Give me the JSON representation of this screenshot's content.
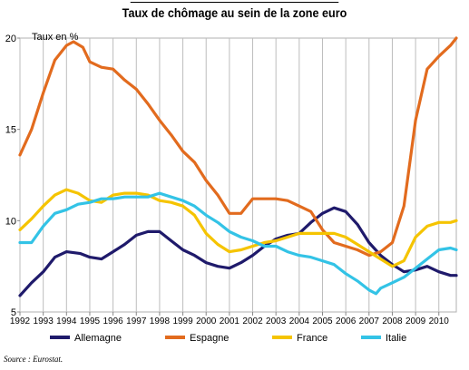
{
  "chart_data": {
    "type": "line",
    "title": "Taux de chômage au sein de la zone euro",
    "ylabel": "Taux en %",
    "xlabel": "",
    "xlim": [
      1992,
      2010.75
    ],
    "ylim": [
      5,
      20
    ],
    "y_ticks": [
      5,
      10,
      15,
      20
    ],
    "x_ticks": [
      1992,
      1993,
      1994,
      1995,
      1996,
      1997,
      1998,
      1999,
      2000,
      2001,
      2002,
      2003,
      2004,
      2005,
      2006,
      2007,
      2008,
      2009,
      2010
    ],
    "grid": "vertical",
    "legend_position": "bottom",
    "source": "Source : Eurostat.",
    "series": [
      {
        "name": "Allemagne",
        "color": "#1f1a6b",
        "points": [
          [
            1992,
            5.9
          ],
          [
            1992.5,
            6.6
          ],
          [
            1993,
            7.2
          ],
          [
            1993.5,
            8.0
          ],
          [
            1994,
            8.3
          ],
          [
            1994.6,
            8.2
          ],
          [
            1995,
            8.0
          ],
          [
            1995.5,
            7.9
          ],
          [
            1996,
            8.3
          ],
          [
            1996.5,
            8.7
          ],
          [
            1997,
            9.2
          ],
          [
            1997.5,
            9.4
          ],
          [
            1998,
            9.4
          ],
          [
            1998.5,
            8.9
          ],
          [
            1999,
            8.4
          ],
          [
            1999.5,
            8.1
          ],
          [
            2000,
            7.7
          ],
          [
            2000.5,
            7.5
          ],
          [
            2001,
            7.4
          ],
          [
            2001.5,
            7.7
          ],
          [
            2002,
            8.1
          ],
          [
            2002.5,
            8.6
          ],
          [
            2003,
            9.0
          ],
          [
            2003.5,
            9.2
          ],
          [
            2004,
            9.3
          ],
          [
            2004.5,
            9.9
          ],
          [
            2005,
            10.4
          ],
          [
            2005.5,
            10.7
          ],
          [
            2006,
            10.5
          ],
          [
            2006.5,
            9.8
          ],
          [
            2007,
            8.8
          ],
          [
            2007.5,
            8.1
          ],
          [
            2008,
            7.6
          ],
          [
            2008.5,
            7.2
          ],
          [
            2009,
            7.3
          ],
          [
            2009.5,
            7.5
          ],
          [
            2010,
            7.2
          ],
          [
            2010.5,
            7.0
          ],
          [
            2010.75,
            7.0
          ]
        ]
      },
      {
        "name": "Espagne",
        "color": "#e26b1e",
        "points": [
          [
            1992,
            13.6
          ],
          [
            1992.5,
            15.0
          ],
          [
            1993,
            17.0
          ],
          [
            1993.5,
            18.8
          ],
          [
            1994,
            19.6
          ],
          [
            1994.3,
            19.8
          ],
          [
            1994.7,
            19.5
          ],
          [
            1995,
            18.7
          ],
          [
            1995.5,
            18.4
          ],
          [
            1996,
            18.3
          ],
          [
            1996.5,
            17.7
          ],
          [
            1997,
            17.2
          ],
          [
            1997.5,
            16.4
          ],
          [
            1998,
            15.5
          ],
          [
            1998.5,
            14.7
          ],
          [
            1999,
            13.8
          ],
          [
            1999.5,
            13.2
          ],
          [
            2000,
            12.2
          ],
          [
            2000.5,
            11.4
          ],
          [
            2001,
            10.4
          ],
          [
            2001.5,
            10.4
          ],
          [
            2002,
            11.2
          ],
          [
            2002.5,
            11.2
          ],
          [
            2003,
            11.2
          ],
          [
            2003.5,
            11.1
          ],
          [
            2004,
            10.8
          ],
          [
            2004.5,
            10.5
          ],
          [
            2005,
            9.5
          ],
          [
            2005.5,
            8.8
          ],
          [
            2006,
            8.6
          ],
          [
            2006.5,
            8.4
          ],
          [
            2007,
            8.1
          ],
          [
            2007.5,
            8.3
          ],
          [
            2008,
            8.8
          ],
          [
            2008.5,
            10.8
          ],
          [
            2009,
            15.5
          ],
          [
            2009.5,
            18.3
          ],
          [
            2010,
            19.0
          ],
          [
            2010.5,
            19.6
          ],
          [
            2010.75,
            20.0
          ]
        ]
      },
      {
        "name": "France",
        "color": "#f5c400",
        "points": [
          [
            1992,
            9.5
          ],
          [
            1992.5,
            10.1
          ],
          [
            1993,
            10.8
          ],
          [
            1993.5,
            11.4
          ],
          [
            1994,
            11.7
          ],
          [
            1994.5,
            11.5
          ],
          [
            1995,
            11.1
          ],
          [
            1995.5,
            11.0
          ],
          [
            1996,
            11.4
          ],
          [
            1996.5,
            11.5
          ],
          [
            1997,
            11.5
          ],
          [
            1997.5,
            11.4
          ],
          [
            1998,
            11.1
          ],
          [
            1998.5,
            11.0
          ],
          [
            1999,
            10.8
          ],
          [
            1999.5,
            10.3
          ],
          [
            2000,
            9.3
          ],
          [
            2000.5,
            8.7
          ],
          [
            2001,
            8.3
          ],
          [
            2001.5,
            8.4
          ],
          [
            2002,
            8.6
          ],
          [
            2002.5,
            8.8
          ],
          [
            2003,
            8.9
          ],
          [
            2003.5,
            9.1
          ],
          [
            2004,
            9.3
          ],
          [
            2004.5,
            9.3
          ],
          [
            2005,
            9.3
          ],
          [
            2005.5,
            9.3
          ],
          [
            2006,
            9.1
          ],
          [
            2006.5,
            8.7
          ],
          [
            2007,
            8.3
          ],
          [
            2007.5,
            7.9
          ],
          [
            2008,
            7.5
          ],
          [
            2008.5,
            7.8
          ],
          [
            2009,
            9.1
          ],
          [
            2009.5,
            9.7
          ],
          [
            2010,
            9.9
          ],
          [
            2010.5,
            9.9
          ],
          [
            2010.75,
            10.0
          ]
        ]
      },
      {
        "name": "Italie",
        "color": "#33c3e6",
        "points": [
          [
            1992,
            8.8
          ],
          [
            1992.5,
            8.8
          ],
          [
            1993,
            9.7
          ],
          [
            1993.5,
            10.4
          ],
          [
            1994,
            10.6
          ],
          [
            1994.5,
            10.9
          ],
          [
            1995,
            11.0
          ],
          [
            1995.5,
            11.2
          ],
          [
            1996,
            11.2
          ],
          [
            1996.5,
            11.3
          ],
          [
            1997,
            11.3
          ],
          [
            1997.5,
            11.3
          ],
          [
            1998,
            11.5
          ],
          [
            1998.5,
            11.3
          ],
          [
            1999,
            11.1
          ],
          [
            1999.5,
            10.8
          ],
          [
            2000,
            10.3
          ],
          [
            2000.5,
            9.9
          ],
          [
            2001,
            9.4
          ],
          [
            2001.5,
            9.1
          ],
          [
            2002,
            8.9
          ],
          [
            2002.5,
            8.6
          ],
          [
            2003,
            8.6
          ],
          [
            2003.5,
            8.3
          ],
          [
            2004,
            8.1
          ],
          [
            2004.5,
            8.0
          ],
          [
            2005,
            7.8
          ],
          [
            2005.5,
            7.6
          ],
          [
            2006,
            7.1
          ],
          [
            2006.5,
            6.7
          ],
          [
            2007,
            6.2
          ],
          [
            2007.3,
            6.0
          ],
          [
            2007.5,
            6.3
          ],
          [
            2008,
            6.6
          ],
          [
            2008.5,
            6.9
          ],
          [
            2009,
            7.4
          ],
          [
            2009.5,
            7.9
          ],
          [
            2010,
            8.4
          ],
          [
            2010.5,
            8.5
          ],
          [
            2010.75,
            8.4
          ]
        ]
      }
    ]
  }
}
